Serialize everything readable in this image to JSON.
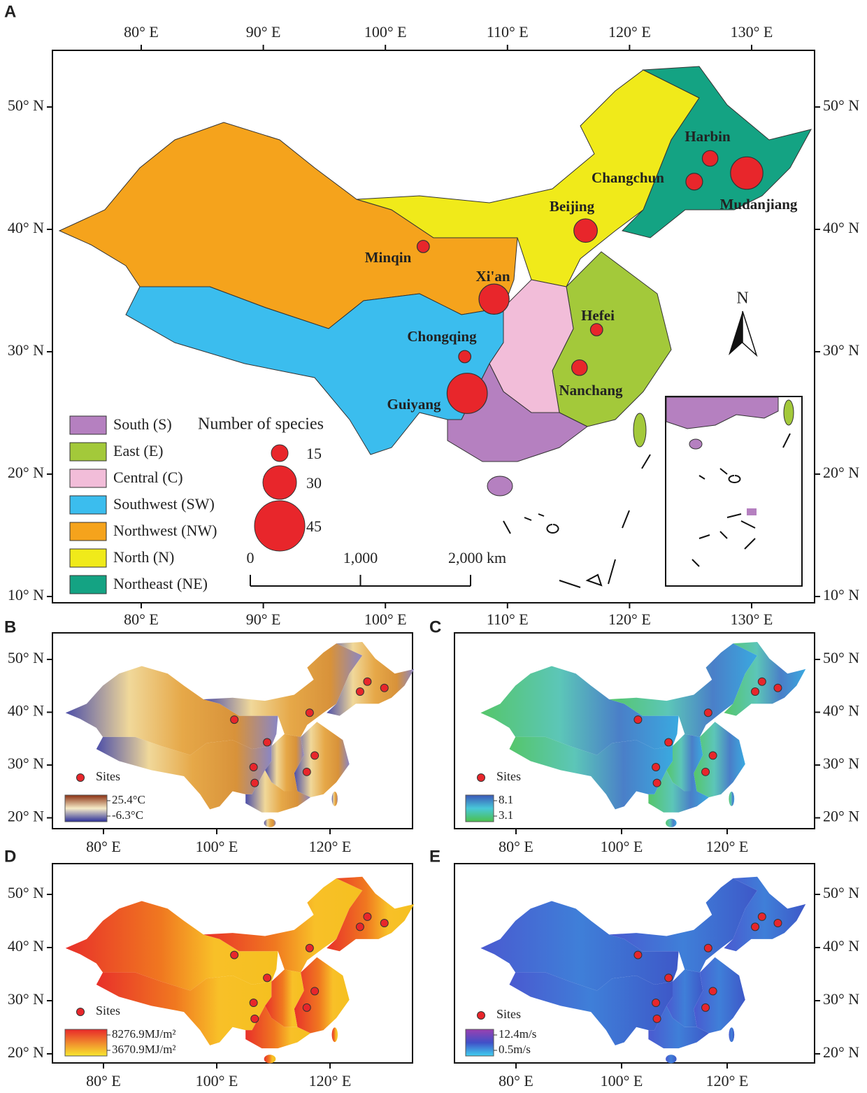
{
  "panels": {
    "A": {
      "label": "A",
      "lon_ticks": [
        {
          "value": 80,
          "label": "80° E"
        },
        {
          "value": 90,
          "label": "90° E"
        },
        {
          "value": 100,
          "label": "100° E"
        },
        {
          "value": 110,
          "label": "110° E"
        },
        {
          "value": 120,
          "label": "120° E"
        },
        {
          "value": 130,
          "label": "130° E"
        }
      ],
      "lat_ticks": [
        {
          "value": 10,
          "label": "10° N"
        },
        {
          "value": 20,
          "label": "20° N"
        },
        {
          "value": 30,
          "label": "30° N"
        },
        {
          "value": 40,
          "label": "40° N"
        },
        {
          "value": 50,
          "label": "50° N"
        }
      ],
      "regions": [
        {
          "name": "South (S)",
          "color": "#b580c0"
        },
        {
          "name": "East (E)",
          "color": "#a3c93a"
        },
        {
          "name": "Central (C)",
          "color": "#f2bdd9"
        },
        {
          "name": "Southwest (SW)",
          "color": "#3bbdee"
        },
        {
          "name": "Northwest (NW)",
          "color": "#f5a31c"
        },
        {
          "name": "North (N)",
          "color": "#f0ea1a"
        },
        {
          "name": "Northeast (NE)",
          "color": "#14a383"
        }
      ],
      "size_legend": {
        "title": "Number of species",
        "values": [
          15,
          30,
          45
        ]
      },
      "scale_bar": [
        {
          "value": 0,
          "label": "0"
        },
        {
          "value": 1000,
          "label": "1,000"
        },
        {
          "value": 2000,
          "label": "2,000 km"
        }
      ],
      "north": "N",
      "site_color": "#e8262b"
    },
    "B": {
      "label": "B",
      "colorbar": [
        {
          "value": 25.4,
          "label": "25.4°C"
        },
        {
          "value": -6.3,
          "label": "-6.3°C"
        }
      ]
    },
    "C": {
      "label": "C",
      "colorbar": [
        {
          "value": 8.1,
          "label": "8.1"
        },
        {
          "value": 3.1,
          "label": "3.1"
        }
      ]
    },
    "D": {
      "label": "D",
      "colorbar": [
        {
          "value": 8276.9,
          "label": "8276.9MJ/m²"
        },
        {
          "value": 3670.9,
          "label": "3670.9MJ/m²"
        }
      ]
    },
    "E": {
      "label": "E",
      "colorbar": [
        {
          "value": 12.4,
          "label": "12.4m/s"
        },
        {
          "value": 0.5,
          "label": "0.5m/s"
        }
      ]
    },
    "small_lon_ticks": [
      {
        "value": 80,
        "label": "80° E"
      },
      {
        "value": 100,
        "label": "100° E"
      },
      {
        "value": 120,
        "label": "120° E"
      }
    ],
    "small_lat_ticks": [
      {
        "value": 20,
        "label": "20° N"
      },
      {
        "value": 30,
        "label": "30° N"
      },
      {
        "value": 40,
        "label": "40° N"
      },
      {
        "value": 50,
        "label": "50° N"
      }
    ],
    "sites_label": "Sites"
  },
  "sites": [
    {
      "name": "Harbin",
      "lon": 126.6,
      "lat": 45.8,
      "species": 14
    },
    {
      "name": "Changchun",
      "lon": 125.3,
      "lat": 43.9,
      "species": 15
    },
    {
      "name": "Mudanjiang",
      "lon": 129.6,
      "lat": 44.6,
      "species": 29
    },
    {
      "name": "Beijing",
      "lon": 116.4,
      "lat": 39.9,
      "species": 21
    },
    {
      "name": "Minqin",
      "lon": 103.1,
      "lat": 38.6,
      "species": 11
    },
    {
      "name": "Xi'an",
      "lon": 108.9,
      "lat": 34.3,
      "species": 27
    },
    {
      "name": "Hefei",
      "lon": 117.3,
      "lat": 31.8,
      "species": 11
    },
    {
      "name": "Chongqing",
      "lon": 106.5,
      "lat": 29.6,
      "species": 11
    },
    {
      "name": "Nanchang",
      "lon": 115.9,
      "lat": 28.7,
      "species": 14
    },
    {
      "name": "Guiyang",
      "lon": 106.7,
      "lat": 26.6,
      "species": 36
    }
  ]
}
